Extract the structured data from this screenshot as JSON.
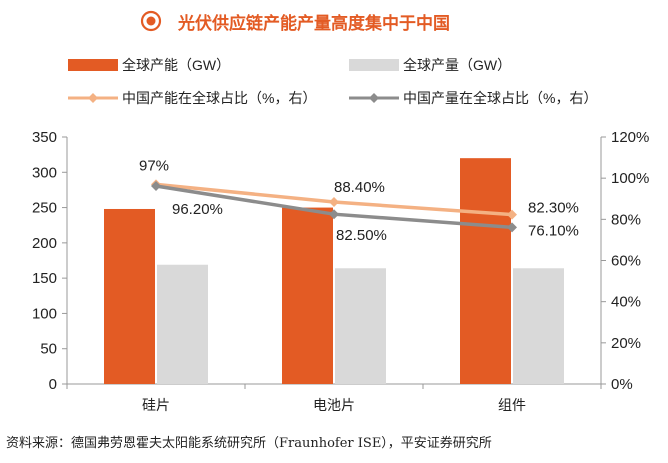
{
  "title": "光伏供应链产能产量高度集中于中国",
  "source": "资料来源：德国弗劳恩霍夫太阳能系统研究所（Fraunhofer ISE），平安证券研究所",
  "colors": {
    "title": "#e35b24",
    "capacity": "#e35b24",
    "output": "#d9d9d9",
    "capacity_share": "#f4b183",
    "output_share": "#8c8c8c"
  },
  "chart_data": {
    "type": "bar",
    "categories": [
      "硅片",
      "电池片",
      "组件"
    ],
    "series": [
      {
        "name": "全球产能（GW）",
        "kind": "bar",
        "axis": "left",
        "values": [
          248,
          250,
          320
        ]
      },
      {
        "name": "全球产量（GW）",
        "kind": "bar",
        "axis": "left",
        "values": [
          169,
          164,
          164
        ]
      },
      {
        "name": "中国产能在全球占比（%，右）",
        "kind": "line",
        "axis": "right",
        "values": [
          97,
          88.4,
          82.3
        ],
        "labels": [
          "97%",
          "88.40%",
          "82.30%"
        ]
      },
      {
        "name": "中国产量在全球占比（%，右）",
        "kind": "line",
        "axis": "right",
        "values": [
          96.2,
          82.5,
          76.1
        ],
        "labels": [
          "96.20%",
          "82.50%",
          "76.10%"
        ]
      }
    ],
    "left_axis": {
      "ylim": [
        0,
        350
      ],
      "ticks": [
        "0",
        "50",
        "100",
        "150",
        "200",
        "250",
        "300",
        "350"
      ]
    },
    "right_axis": {
      "ylim": [
        0,
        120
      ],
      "ticks": [
        "0%",
        "20%",
        "40%",
        "60%",
        "80%",
        "100%",
        "120%"
      ]
    },
    "legend": "top",
    "grid": false
  }
}
